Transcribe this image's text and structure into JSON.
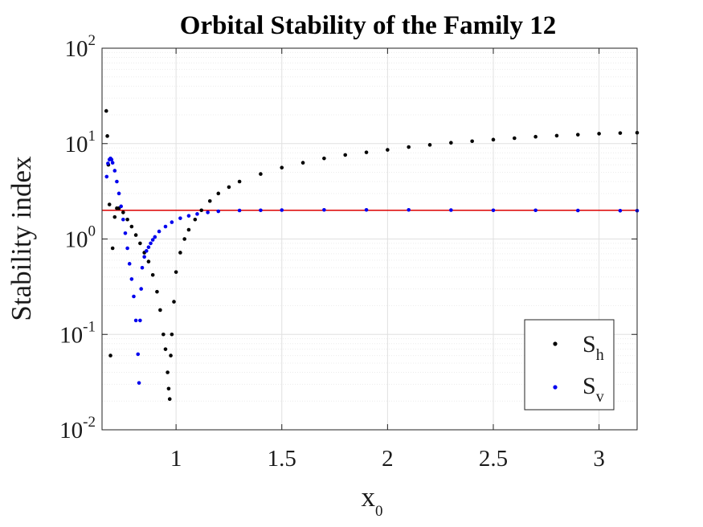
{
  "chart_data": {
    "type": "scatter",
    "title": "Orbital Stability of the Family 12",
    "xlabel": {
      "text": "x",
      "subscript": "0"
    },
    "ylabel": "Stability index",
    "x_scale": "linear",
    "y_scale": "log",
    "xlim": [
      0.65,
      3.18
    ],
    "ylim": [
      0.01,
      100
    ],
    "x_ticks": [
      1,
      1.5,
      2,
      2.5,
      3
    ],
    "x_tick_labels": [
      "1",
      "1.5",
      "2",
      "2.5",
      "3"
    ],
    "y_ticks": [
      0.01,
      0.1,
      1,
      10,
      100
    ],
    "y_tick_labels": [
      {
        "base": "10",
        "exponent": "-2"
      },
      {
        "base": "10",
        "exponent": "-1"
      },
      {
        "base": "10",
        "exponent": "0"
      },
      {
        "base": "10",
        "exponent": "1"
      },
      {
        "base": "10",
        "exponent": "2"
      }
    ],
    "grid": true,
    "minor_grid": true,
    "reference_line": {
      "y": 2,
      "color": "#dd0000"
    },
    "legend": {
      "placement": "bottom-right",
      "entries": [
        {
          "text": "S",
          "subscript": "h",
          "color": "#000000"
        },
        {
          "text": "S",
          "subscript": "v",
          "color": "#0000ee"
        }
      ]
    },
    "series": [
      {
        "id": "Sh",
        "color": "#000000",
        "x": [
          0.67,
          0.675,
          0.68,
          0.685,
          0.69,
          0.7,
          0.71,
          0.72,
          0.73,
          0.75,
          0.77,
          0.79,
          0.81,
          0.83,
          0.85,
          0.87,
          0.89,
          0.91,
          0.925,
          0.94,
          0.95,
          0.96,
          0.965,
          0.97,
          0.975,
          0.98,
          0.99,
          1.0,
          1.02,
          1.04,
          1.06,
          1.09,
          1.12,
          1.16,
          1.2,
          1.25,
          1.3,
          1.4,
          1.5,
          1.6,
          1.7,
          1.8,
          1.9,
          2.0,
          2.1,
          2.2,
          2.3,
          2.4,
          2.5,
          2.6,
          2.7,
          2.8,
          2.9,
          3.0,
          3.1,
          3.18
        ],
        "y": [
          22,
          12,
          6,
          2.3,
          0.06,
          0.8,
          1.7,
          2.1,
          2.1,
          1.9,
          1.6,
          1.35,
          1.1,
          0.9,
          0.72,
          0.58,
          0.42,
          0.28,
          0.18,
          0.1,
          0.07,
          0.04,
          0.027,
          0.021,
          0.06,
          0.1,
          0.22,
          0.45,
          0.72,
          1.0,
          1.25,
          1.6,
          2.0,
          2.5,
          3.0,
          3.5,
          4.0,
          4.8,
          5.6,
          6.3,
          7.0,
          7.6,
          8.1,
          8.6,
          9.2,
          9.7,
          10.2,
          10.6,
          11.0,
          11.4,
          11.8,
          12.1,
          12.4,
          12.7,
          12.9,
          13.0
        ]
      },
      {
        "id": "Sv",
        "color": "#0000ee",
        "x": [
          0.672,
          0.678,
          0.685,
          0.69,
          0.695,
          0.7,
          0.71,
          0.72,
          0.73,
          0.74,
          0.75,
          0.76,
          0.77,
          0.78,
          0.79,
          0.8,
          0.81,
          0.82,
          0.825,
          0.83,
          0.835,
          0.84,
          0.85,
          0.86,
          0.87,
          0.88,
          0.89,
          0.9,
          0.92,
          0.95,
          0.98,
          1.02,
          1.06,
          1.1,
          1.15,
          1.2,
          1.3,
          1.4,
          1.5,
          1.7,
          1.9,
          2.1,
          2.3,
          2.5,
          2.7,
          2.9,
          3.1,
          3.18
        ],
        "y": [
          4.5,
          6.2,
          6.8,
          7.0,
          6.8,
          6.3,
          5.2,
          4.0,
          3.0,
          2.2,
          1.6,
          1.15,
          0.8,
          0.55,
          0.38,
          0.25,
          0.14,
          0.062,
          0.031,
          0.14,
          0.3,
          0.5,
          0.65,
          0.75,
          0.82,
          0.9,
          0.98,
          1.05,
          1.2,
          1.35,
          1.5,
          1.65,
          1.75,
          1.83,
          1.9,
          1.95,
          1.99,
          2.0,
          2.01,
          2.02,
          2.02,
          2.02,
          2.01,
          2.0,
          2.0,
          1.99,
          1.98,
          1.98
        ]
      }
    ]
  }
}
